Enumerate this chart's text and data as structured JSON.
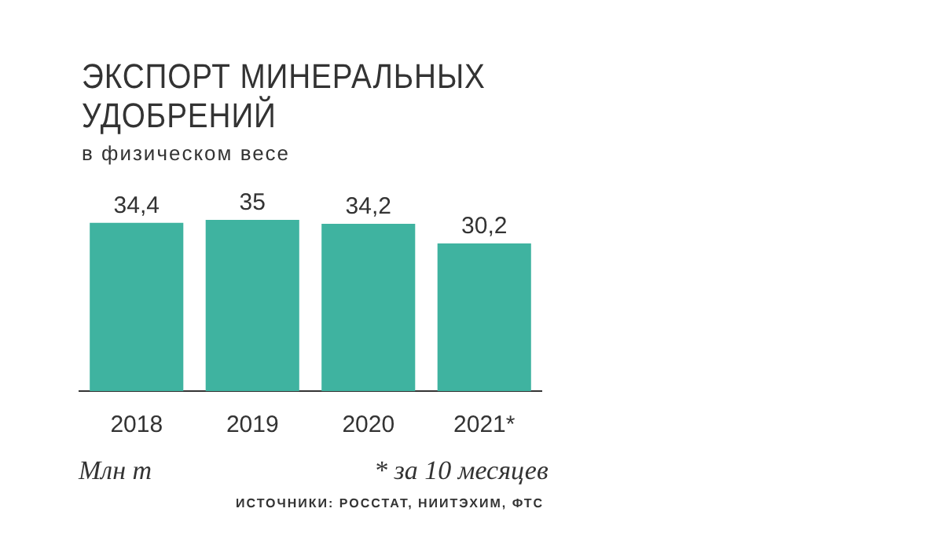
{
  "chart_data": {
    "type": "bar",
    "title": "ЭКСПОРТ МИНЕРАЛЬНЫХ УДОБРЕНИЙ",
    "subtitle": "в физическом весе",
    "categories": [
      "2018",
      "2019",
      "2020",
      "2021*"
    ],
    "values": [
      34.4,
      35,
      34.2,
      30.2
    ],
    "value_labels": [
      "34,4",
      "35",
      "34,2",
      "30,2"
    ],
    "color": "#3fb3a0",
    "grid": false,
    "legend": false,
    "tick_labels": "x",
    "annotations": [
      "Млн т",
      "* за 10 месяцев",
      "ИСТОЧНИКИ: РОССТАТ, НИИТЭХИМ, ФТС"
    ]
  }
}
